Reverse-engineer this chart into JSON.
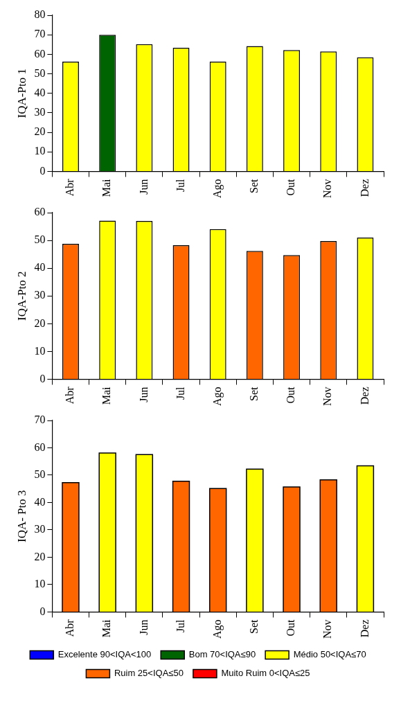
{
  "chart_data": [
    {
      "type": "bar",
      "ylabel": "IQA-Pto 1",
      "categories": [
        "Abr",
        "Mai",
        "Jun",
        "Jul",
        "Ago",
        "Set",
        "Out",
        "Nov",
        "Dez"
      ],
      "values": [
        56.2,
        70,
        65.2,
        63.3,
        56.2,
        64.2,
        62.2,
        61.5,
        58.4
      ],
      "colors": [
        "#ffff00",
        "#006400",
        "#ffff00",
        "#ffff00",
        "#ffff00",
        "#ffff00",
        "#ffff00",
        "#ffff00",
        "#ffff00"
      ],
      "ylim": [
        0,
        80
      ],
      "yticks": [
        0,
        10,
        20,
        30,
        40,
        50,
        60,
        70,
        80
      ]
    },
    {
      "type": "bar",
      "ylabel": "IQA-Pto 2",
      "categories": [
        "Abr",
        "Mai",
        "Jun",
        "Jul",
        "Ago",
        "Set",
        "Out",
        "Nov",
        "Dez"
      ],
      "values": [
        48.8,
        57.1,
        57,
        48.3,
        54.1,
        46.2,
        44.7,
        49.8,
        51
      ],
      "colors": [
        "#ff6600",
        "#ffff00",
        "#ffff00",
        "#ff6600",
        "#ffff00",
        "#ff6600",
        "#ff6600",
        "#ff6600",
        "#ffff00"
      ],
      "ylim": [
        0,
        60
      ],
      "yticks": [
        0,
        10,
        20,
        30,
        40,
        50,
        60
      ]
    },
    {
      "type": "bar",
      "ylabel": "IQA- Pto 3",
      "categories": [
        "Abr",
        "Mai",
        "Jun",
        "Jul",
        "Ago",
        "Set",
        "Out",
        "Nov",
        "Dez"
      ],
      "legend": "bottom",
      "ylim": [
        0,
        70
      ],
      "yticks": [
        0,
        10,
        20,
        30,
        40,
        50,
        60,
        70
      ],
      "series": [
        {
          "name": "Excelente 90<IQA<100",
          "color": "#0000ff",
          "values": [
            null,
            null,
            null,
            null,
            null,
            null,
            null,
            null,
            null
          ]
        },
        {
          "name": "Bom 70<IQA≤90",
          "color": "#006400",
          "values": [
            null,
            null,
            null,
            null,
            null,
            null,
            null,
            null,
            null
          ]
        },
        {
          "name": "Médio 50<IQA≤70",
          "color": "#ffff00",
          "values": [
            null,
            58.1,
            57.5,
            null,
            null,
            52.2,
            null,
            null,
            53.4
          ]
        },
        {
          "name": "Ruim 25<IQA≤50",
          "color": "#ff6600",
          "values": [
            47.3,
            null,
            null,
            47.8,
            45.1,
            null,
            45.7,
            48.3,
            null
          ]
        },
        {
          "name": "Muito Ruim 0<IQA≤25",
          "color": "#ff0000",
          "values": [
            null,
            null,
            null,
            null,
            null,
            null,
            null,
            null,
            null
          ]
        }
      ]
    }
  ]
}
